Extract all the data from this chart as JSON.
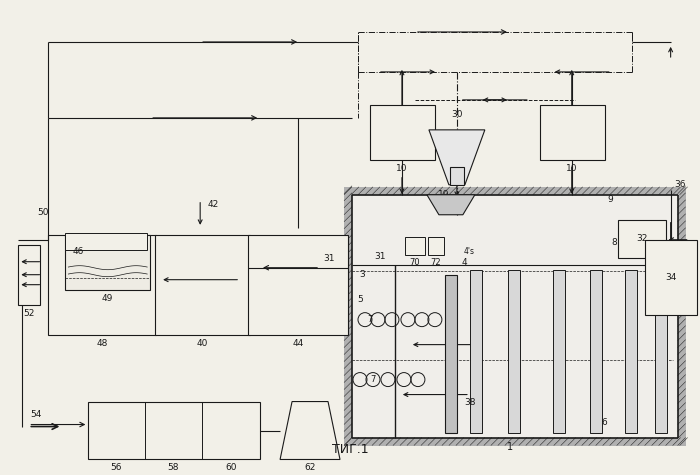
{
  "title": "ΤИГ.1",
  "bg_color": "#f2f0e8",
  "line_color": "#1a1a1a",
  "fig_width": 7.0,
  "fig_height": 4.75
}
